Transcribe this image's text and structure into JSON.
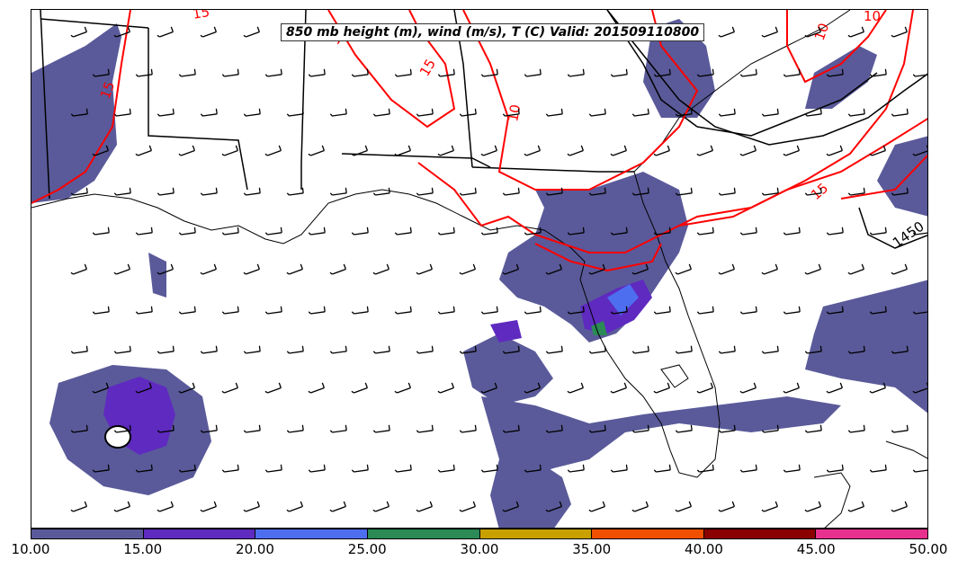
{
  "title": "850 mb height (m), wind (m/s), T (C) Valid: 201509110800",
  "colorbar": {
    "ticks": [
      "10.00",
      "15.00",
      "20.00",
      "25.00",
      "30.00",
      "35.00",
      "40.00",
      "45.00",
      "50.00"
    ],
    "colors": [
      "#5a5a9a",
      "#5f2ac0",
      "#4e6ef0",
      "#2b8a55",
      "#c8a000",
      "#f05000",
      "#8b0000",
      "#e8308f"
    ]
  },
  "contours": {
    "temperature_labels": [
      "15",
      "15",
      "10",
      "10",
      "10",
      "15",
      "15",
      "15"
    ],
    "temperature_color": "#ff0000",
    "height_labels": [
      "1450"
    ],
    "height_color": "#000000"
  },
  "map": {
    "region": "Gulf of Mexico / Southeast United States",
    "features": [
      "wind-barbs",
      "wind-speed-shading",
      "temperature-contours",
      "height-contours",
      "tropical-cyclone-low"
    ]
  }
}
